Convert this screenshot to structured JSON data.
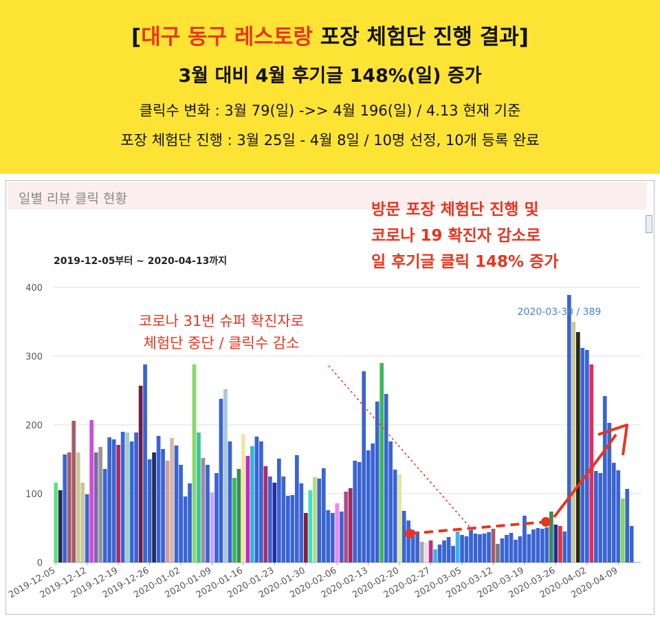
{
  "header": {
    "title_open": "[",
    "title_red": "대구 동구 레스토랑",
    "title_rest": " 포장 체험단 진행 결과]",
    "subtitle": "3월 대비 4월 후기글 148%(일) 증가",
    "line1": "클릭수 변화 : 3월 79(일) ->> 4월 196(일) / 4.13 현재 기준",
    "line2": "포장 체험단 진행 : 3월 25일 - 4월 8일 / 10명 선정, 10개 등록 완료"
  },
  "panel": {
    "title": "일별 리뷰 클릭 현황"
  },
  "chart_data": {
    "type": "bar",
    "date_range": "2019-12-05부터 ~ 2020-04-13까지",
    "start_date": "2019-12-05",
    "ylim": [
      0,
      400
    ],
    "yticks": [
      0,
      100,
      200,
      300,
      400
    ],
    "xticks": [
      "2019-12-05",
      "2019-12-12",
      "2019-12-19",
      "2019-12-26",
      "2020-01-02",
      "2020-01-09",
      "2020-01-16",
      "2020-01-23",
      "2020-01-30",
      "2020-02-06",
      "2020-02-13",
      "2020-02-20",
      "2020-02-27",
      "2020-03-05",
      "2020-03-12",
      "2020-03-19",
      "2020-03-26",
      "2020-04-02",
      "2020-04-09"
    ],
    "grid": true,
    "values": [
      116,
      105,
      157,
      160,
      206,
      160,
      116,
      99,
      207,
      160,
      168,
      136,
      182,
      179,
      171,
      190,
      189,
      176,
      189,
      257,
      288,
      150,
      160,
      184,
      165,
      148,
      181,
      170,
      142,
      96,
      115,
      288,
      189,
      152,
      142,
      102,
      130,
      238,
      252,
      176,
      123,
      136,
      187,
      155,
      169,
      183,
      176,
      140,
      125,
      116,
      151,
      125,
      97,
      98,
      156,
      115,
      72,
      105,
      124,
      122,
      137,
      76,
      72,
      86,
      74,
      103,
      108,
      148,
      146,
      278,
      163,
      173,
      234,
      290,
      245,
      176,
      135,
      128,
      75,
      61,
      47,
      45,
      30,
      29,
      32,
      19,
      26,
      32,
      37,
      24,
      45,
      40,
      38,
      47,
      42,
      41,
      42,
      44,
      49,
      27,
      35,
      40,
      43,
      33,
      38,
      68,
      41,
      48,
      50,
      49,
      51,
      74,
      55,
      53,
      45,
      389,
      350,
      335,
      312,
      309,
      288,
      133,
      130,
      242,
      203,
      145,
      134,
      93,
      107,
      53
    ],
    "colors": [
      "#5fe07e",
      "#222c4e",
      "#3a64d4",
      "#a45c6a",
      "#a65c6a",
      "#c8c896",
      "#c8c896",
      "#3a64d4",
      "#d24adc",
      "#7a68a8",
      "#969696",
      "#3a64d4",
      "#3a64d4",
      "#3a64d4",
      "#b02a60",
      "#3a64d4",
      "#9fcfc8",
      "#3a64d4",
      "#3a64d4",
      "#741c40",
      "#3a64d4",
      "#3a64d4",
      "#222c4e",
      "#3a64d4",
      "#3a64d4",
      "#d19aa8",
      "#d6b8a8",
      "#3a64d4",
      "#3a64d4",
      "#3a64d4",
      "#3a64d4",
      "#8ad86c",
      "#3cc496",
      "#9c8ca8",
      "#3a64d4",
      "#c8a8ee",
      "#3a64d4",
      "#3a64d4",
      "#aac8d8",
      "#3a64d4",
      "#3cb85a",
      "#3a8c5a",
      "#f0e6a0",
      "#c02ac4",
      "#36b6d0",
      "#3a64d4",
      "#3a64d4",
      "#b02a60",
      "#3a64d4",
      "#222c9e",
      "#3a64d4",
      "#3a64d4",
      "#3a64d4",
      "#3a64d4",
      "#3a64d4",
      "#3a64d4",
      "#8c1c34",
      "#3ce0d0",
      "#bcdc78",
      "#3a64d4",
      "#3a64d4",
      "#3a64d4",
      "#3a64d4",
      "#ee88ee",
      "#3a64d4",
      "#ae4c88",
      "#a0285c",
      "#3a64d4",
      "#3a64d4",
      "#3a64d4",
      "#3a64d4",
      "#3a64d4",
      "#3a64d4",
      "#3cb85a",
      "#3a64d4",
      "#3a64d4",
      "#3a64d4",
      "#dce8a0",
      "#3a64d4",
      "#3a64d4",
      "#3a64d4",
      "#3a64d4",
      "#a6a6a6",
      "#e6dcf6",
      "#c0307e",
      "#36b6f0",
      "#3a64d4",
      "#3a64d4",
      "#3a64d4",
      "#3a64d4",
      "#36b6f0",
      "#3a64d4",
      "#3a64d4",
      "#3a64d4",
      "#3a64d4",
      "#3a64d4",
      "#3a64d4",
      "#3a64d4",
      "#a45c6a",
      "#7a7a7a",
      "#3a64d4",
      "#3a64d4",
      "#3a64d4",
      "#3a64d4",
      "#3a64d4",
      "#3a64d4",
      "#3a64d4",
      "#3a64d4",
      "#3a64d4",
      "#3a64d4",
      "#3a64d4",
      "#3a8c5a",
      "#222c9e",
      "#e83232",
      "#3a64d4",
      "#3a64d4",
      "#c8c896",
      "#2a2a16",
      "#3a64d4",
      "#3a64d4",
      "#e82a5a",
      "#3a64d4",
      "#3a64d4",
      "#3a64d4",
      "#3a64d4",
      "#3a64d4",
      "#3a64d4",
      "#8ad84e",
      "#3a64d4",
      "#3a64d4"
    ],
    "tooltip": "2020-03-30 / 389",
    "annotations": [
      {
        "lines": [
          "코로나 31번 슈퍼 확진자로",
          "체험단 중단 / 클릭수 감소"
        ],
        "color": "#e8351f"
      },
      {
        "lines": [
          "방문 포장 체험단 진행 및",
          "코로나 19 확진자 감소로",
          "일 후기글 클릭 148% 증가"
        ],
        "color": "#e8351f"
      }
    ]
  }
}
